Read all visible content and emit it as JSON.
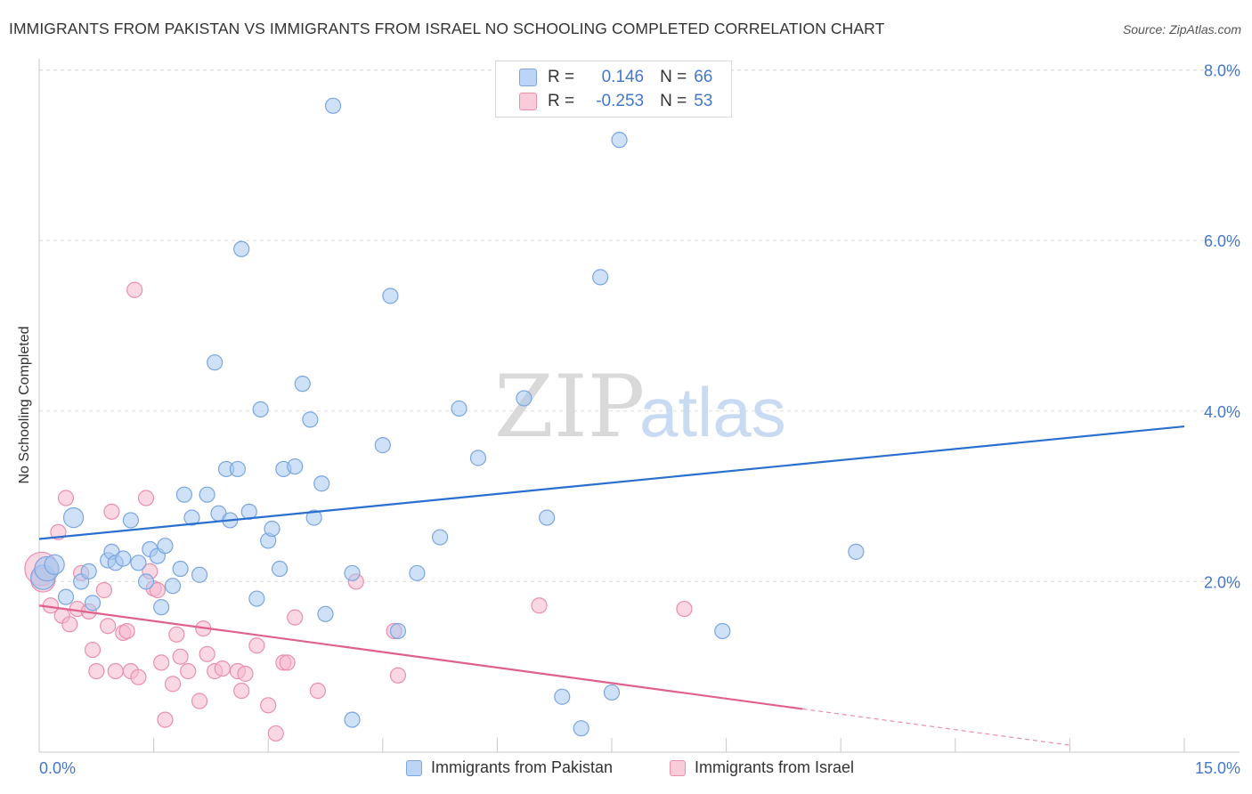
{
  "title": "IMMIGRANTS FROM PAKISTAN VS IMMIGRANTS FROM ISRAEL NO SCHOOLING COMPLETED CORRELATION CHART",
  "source": "Source: ZipAtlas.com",
  "watermark": {
    "zip": "ZIP",
    "atlas": "atlas"
  },
  "colors": {
    "pakistan_fill": "#a8c8f0",
    "pakistan_stroke": "#7aa6e0",
    "pakistan_line": "#2a6fcf",
    "israel_fill": "#f5b8cc",
    "israel_stroke": "#e890ae",
    "israel_line": "#e0608c",
    "grid": "#dddddd",
    "axis_label": "#4477cc"
  },
  "stats_legend": {
    "rows": [
      {
        "r_label": "R =",
        "r_value": "0.146",
        "n_label": "N =",
        "n_value": "66"
      },
      {
        "r_label": "R =",
        "r_value": "-0.253",
        "n_label": "N =",
        "n_value": "53"
      }
    ]
  },
  "bottom_legend": {
    "series": [
      "Immigrants from Pakistan",
      "Immigrants from Israel"
    ]
  },
  "chart_data": {
    "type": "scatter",
    "title": "IMMIGRANTS FROM PAKISTAN VS IMMIGRANTS FROM ISRAEL NO SCHOOLING COMPLETED CORRELATION CHART",
    "xlabel": "",
    "ylabel": "No Schooling Completed",
    "xlim": [
      0,
      15
    ],
    "ylim": [
      0,
      8.3
    ],
    "x_tick_labels": [
      "0.0%",
      "15.0%"
    ],
    "y_ticks": [
      2,
      4,
      6,
      8
    ],
    "y_tick_labels": [
      "2.0%",
      "4.0%",
      "6.0%",
      "8.0%"
    ],
    "grid": true,
    "legend_position": "top-center",
    "series": [
      {
        "name": "Immigrants from Pakistan",
        "r": 0.146,
        "n": 66,
        "trend": {
          "x": [
            0,
            15
          ],
          "y": [
            2.5,
            3.82
          ],
          "dashed_from": null
        },
        "points": [
          [
            0.05,
            2.05,
            1.6
          ],
          [
            0.1,
            2.15,
            1.6
          ],
          [
            0.2,
            2.2,
            1.3
          ],
          [
            0.45,
            2.75,
            1.3
          ],
          [
            0.35,
            1.82,
            1
          ],
          [
            0.55,
            2.0,
            1
          ],
          [
            0.65,
            2.12,
            1
          ],
          [
            0.7,
            1.75,
            1
          ],
          [
            0.9,
            2.25,
            1
          ],
          [
            0.95,
            2.35,
            1
          ],
          [
            1.0,
            2.22,
            1
          ],
          [
            1.1,
            2.27,
            1
          ],
          [
            1.2,
            2.72,
            1
          ],
          [
            1.3,
            2.22,
            1
          ],
          [
            1.4,
            2.0,
            1
          ],
          [
            1.45,
            2.38,
            1
          ],
          [
            1.55,
            2.3,
            1
          ],
          [
            1.6,
            1.7,
            1
          ],
          [
            1.65,
            2.42,
            1
          ],
          [
            1.75,
            1.95,
            1
          ],
          [
            1.85,
            2.15,
            1
          ],
          [
            1.9,
            3.02,
            1
          ],
          [
            2.0,
            2.75,
            1
          ],
          [
            2.1,
            2.08,
            1
          ],
          [
            2.2,
            3.02,
            1
          ],
          [
            2.3,
            4.57,
            1
          ],
          [
            2.35,
            2.8,
            1
          ],
          [
            2.45,
            3.32,
            1
          ],
          [
            2.5,
            2.72,
            1
          ],
          [
            2.6,
            3.32,
            1
          ],
          [
            2.65,
            5.9,
            1
          ],
          [
            2.75,
            2.82,
            1
          ],
          [
            2.85,
            1.8,
            1
          ],
          [
            2.9,
            4.02,
            1
          ],
          [
            3.0,
            2.48,
            1
          ],
          [
            3.05,
            2.62,
            1
          ],
          [
            3.15,
            2.15,
            1
          ],
          [
            3.2,
            3.32,
            1
          ],
          [
            3.35,
            3.35,
            1
          ],
          [
            3.45,
            4.32,
            1
          ],
          [
            3.55,
            3.9,
            1
          ],
          [
            3.6,
            2.75,
            1
          ],
          [
            3.7,
            3.15,
            1
          ],
          [
            3.75,
            1.62,
            1
          ],
          [
            3.85,
            7.58,
            1
          ],
          [
            4.1,
            0.38,
            1
          ],
          [
            4.1,
            2.1,
            1
          ],
          [
            4.5,
            3.6,
            1
          ],
          [
            4.6,
            5.35,
            1
          ],
          [
            4.7,
            1.42,
            1
          ],
          [
            4.95,
            2.1,
            1
          ],
          [
            5.25,
            2.52,
            1
          ],
          [
            5.5,
            4.03,
            1
          ],
          [
            5.75,
            3.45,
            1
          ],
          [
            6.35,
            4.15,
            1
          ],
          [
            6.65,
            2.75,
            1
          ],
          [
            6.85,
            0.65,
            1
          ],
          [
            7.1,
            0.28,
            1
          ],
          [
            7.35,
            5.57,
            1
          ],
          [
            7.5,
            0.7,
            1
          ],
          [
            7.6,
            7.18,
            1
          ],
          [
            8.95,
            1.42,
            1
          ],
          [
            10.7,
            2.35,
            1
          ]
        ]
      },
      {
        "name": "Immigrants from Israel",
        "r": -0.253,
        "n": 53,
        "trend": {
          "x": [
            0,
            15
          ],
          "y": [
            1.72,
            -0.1
          ],
          "dashed_from": 10.0
        },
        "points": [
          [
            0.03,
            2.15,
            2.2
          ],
          [
            0.05,
            2.02,
            1.6
          ],
          [
            0.15,
            1.72,
            1
          ],
          [
            0.25,
            2.58,
            1
          ],
          [
            0.3,
            1.6,
            1
          ],
          [
            0.35,
            2.98,
            1
          ],
          [
            0.4,
            1.5,
            1
          ],
          [
            0.5,
            1.68,
            1
          ],
          [
            0.55,
            2.1,
            1
          ],
          [
            0.65,
            1.65,
            1
          ],
          [
            0.7,
            1.2,
            1
          ],
          [
            0.75,
            0.95,
            1
          ],
          [
            0.85,
            1.9,
            1
          ],
          [
            0.9,
            1.48,
            1
          ],
          [
            0.95,
            2.82,
            1
          ],
          [
            1.0,
            0.95,
            1
          ],
          [
            1.1,
            1.4,
            1
          ],
          [
            1.15,
            1.42,
            1
          ],
          [
            1.2,
            0.95,
            1
          ],
          [
            1.25,
            5.42,
            1
          ],
          [
            1.3,
            0.88,
            1
          ],
          [
            1.4,
            2.98,
            1
          ],
          [
            1.45,
            2.12,
            1
          ],
          [
            1.5,
            1.92,
            1
          ],
          [
            1.55,
            1.9,
            1
          ],
          [
            1.6,
            1.05,
            1
          ],
          [
            1.65,
            0.38,
            1
          ],
          [
            1.75,
            0.8,
            1
          ],
          [
            1.8,
            1.38,
            1
          ],
          [
            1.85,
            1.12,
            1
          ],
          [
            1.95,
            0.95,
            1
          ],
          [
            2.1,
            0.6,
            1
          ],
          [
            2.15,
            1.45,
            1
          ],
          [
            2.2,
            1.15,
            1
          ],
          [
            2.3,
            0.95,
            1
          ],
          [
            2.4,
            0.98,
            1
          ],
          [
            2.6,
            0.95,
            1
          ],
          [
            2.65,
            0.72,
            1
          ],
          [
            2.7,
            0.92,
            1
          ],
          [
            2.85,
            1.25,
            1
          ],
          [
            3.0,
            0.55,
            1
          ],
          [
            3.1,
            0.22,
            1
          ],
          [
            3.2,
            1.05,
            1
          ],
          [
            3.25,
            1.05,
            1
          ],
          [
            3.35,
            1.58,
            1
          ],
          [
            3.65,
            0.72,
            1
          ],
          [
            4.15,
            2.0,
            1
          ],
          [
            4.65,
            1.42,
            1
          ],
          [
            4.7,
            0.9,
            1
          ],
          [
            6.55,
            1.72,
            1
          ],
          [
            8.45,
            1.68,
            1
          ]
        ]
      }
    ]
  }
}
